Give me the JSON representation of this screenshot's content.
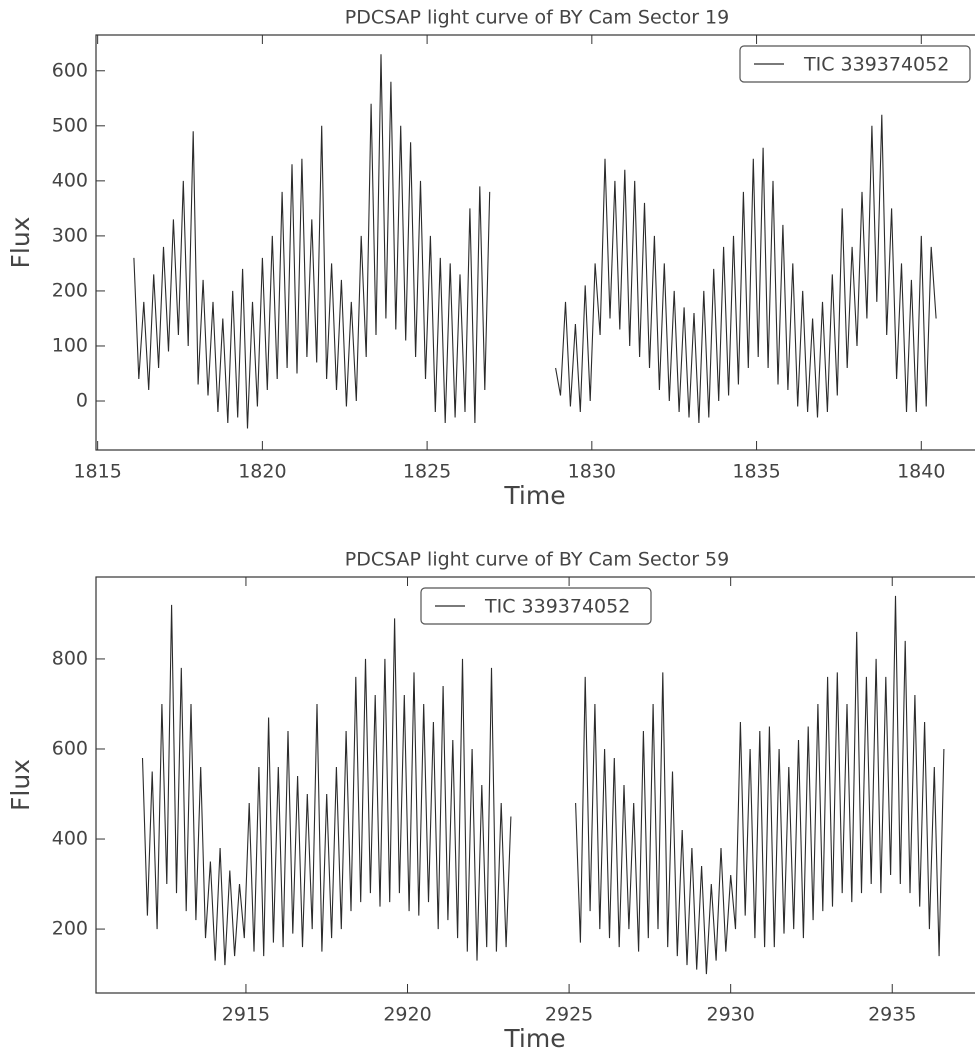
{
  "chart_data": [
    {
      "type": "line",
      "title": "PDCSAP light curve of BY Cam Sector 19",
      "xlabel": "Time",
      "ylabel": "Flux",
      "x": [
        1816.1,
        1816.25,
        1816.4,
        1816.55,
        1816.7,
        1816.85,
        1817.0,
        1817.15,
        1817.3,
        1817.45,
        1817.6,
        1817.75,
        1817.9,
        1818.05,
        1818.2,
        1818.35,
        1818.5,
        1818.65,
        1818.8,
        1818.95,
        1819.1,
        1819.25,
        1819.4,
        1819.55,
        1819.7,
        1819.85,
        1820.0,
        1820.15,
        1820.3,
        1820.45,
        1820.6,
        1820.75,
        1820.9,
        1821.05,
        1821.2,
        1821.35,
        1821.5,
        1821.65,
        1821.8,
        1821.95,
        1822.1,
        1822.25,
        1822.4,
        1822.55,
        1822.7,
        1822.85,
        1823.0,
        1823.15,
        1823.3,
        1823.45,
        1823.6,
        1823.75,
        1823.9,
        1824.05,
        1824.2,
        1824.35,
        1824.5,
        1824.65,
        1824.8,
        1824.95,
        1825.1,
        1825.25,
        1825.4,
        1825.55,
        1825.7,
        1825.85,
        1826.0,
        1826.15,
        1826.3,
        1826.45,
        1826.6,
        1826.75,
        1826.9,
        1827.9,
        1828.9,
        1829.05,
        1829.2,
        1829.35,
        1829.5,
        1829.65,
        1829.8,
        1829.95,
        1830.1,
        1830.25,
        1830.4,
        1830.55,
        1830.7,
        1830.85,
        1831.0,
        1831.15,
        1831.3,
        1831.45,
        1831.6,
        1831.75,
        1831.9,
        1832.05,
        1832.2,
        1832.35,
        1832.5,
        1832.65,
        1832.8,
        1832.95,
        1833.1,
        1833.25,
        1833.4,
        1833.55,
        1833.7,
        1833.85,
        1834.0,
        1834.15,
        1834.3,
        1834.45,
        1834.6,
        1834.75,
        1834.9,
        1835.05,
        1835.2,
        1835.35,
        1835.5,
        1835.65,
        1835.8,
        1835.95,
        1836.1,
        1836.25,
        1836.4,
        1836.55,
        1836.7,
        1836.85,
        1837.0,
        1837.15,
        1837.3,
        1837.45,
        1837.6,
        1837.75,
        1837.9,
        1838.05,
        1838.2,
        1838.35,
        1838.5,
        1838.65,
        1838.8,
        1838.95,
        1839.1,
        1839.25,
        1839.4,
        1839.55,
        1839.7,
        1839.85,
        1840.0,
        1840.15,
        1840.3,
        1840.45
      ],
      "series": [
        {
          "name": "TIC 339374052",
          "color": "#2b2b2b",
          "values": [
            260,
            40,
            180,
            20,
            230,
            60,
            280,
            90,
            330,
            120,
            400,
            100,
            490,
            30,
            220,
            10,
            180,
            -20,
            150,
            -40,
            200,
            -30,
            240,
            -50,
            180,
            -10,
            260,
            20,
            300,
            40,
            380,
            60,
            430,
            50,
            440,
            80,
            330,
            70,
            500,
            40,
            250,
            20,
            220,
            -10,
            180,
            0,
            300,
            80,
            540,
            120,
            630,
            150,
            580,
            130,
            500,
            110,
            470,
            80,
            400,
            40,
            300,
            -20,
            260,
            -40,
            250,
            -30,
            230,
            -20,
            350,
            -40,
            390,
            20,
            380,
            null,
            60,
            10,
            180,
            -10,
            140,
            -20,
            210,
            0,
            250,
            120,
            440,
            150,
            400,
            130,
            420,
            100,
            400,
            80,
            360,
            60,
            300,
            20,
            250,
            0,
            200,
            -20,
            170,
            -30,
            160,
            -40,
            200,
            -30,
            240,
            0,
            280,
            10,
            300,
            30,
            380,
            60,
            440,
            80,
            460,
            60,
            400,
            30,
            320,
            20,
            250,
            -10,
            200,
            -20,
            150,
            -30,
            180,
            -20,
            230,
            10,
            350,
            60,
            280,
            100,
            380,
            150,
            500,
            180,
            520,
            120,
            350,
            40,
            250,
            -20,
            220,
            -20,
            300,
            -10,
            280,
            150
          ]
        }
      ],
      "xlim": [
        1814.95,
        1841.6
      ],
      "ylim": [
        -89,
        665
      ],
      "xticks": [
        1815,
        1820,
        1825,
        1830,
        1835,
        1840
      ],
      "yticks": [
        0,
        100,
        200,
        300,
        400,
        500,
        600
      ],
      "legend": "upper right"
    },
    {
      "type": "line",
      "title": "PDCSAP light curve of BY Cam Sector 59",
      "xlabel": "Time",
      "ylabel": "Flux",
      "x": [
        2911.8,
        2911.95,
        2912.1,
        2912.25,
        2912.4,
        2912.55,
        2912.7,
        2912.85,
        2913.0,
        2913.15,
        2913.3,
        2913.45,
        2913.6,
        2913.75,
        2913.9,
        2914.05,
        2914.2,
        2914.35,
        2914.5,
        2914.65,
        2914.8,
        2914.95,
        2915.1,
        2915.25,
        2915.4,
        2915.55,
        2915.7,
        2915.85,
        2916.0,
        2916.15,
        2916.3,
        2916.45,
        2916.6,
        2916.75,
        2916.9,
        2917.05,
        2917.2,
        2917.35,
        2917.5,
        2917.65,
        2917.8,
        2917.95,
        2918.1,
        2918.25,
        2918.4,
        2918.55,
        2918.7,
        2918.85,
        2919.0,
        2919.15,
        2919.3,
        2919.45,
        2919.6,
        2919.75,
        2919.9,
        2920.05,
        2920.2,
        2920.35,
        2920.5,
        2920.65,
        2920.8,
        2920.95,
        2921.1,
        2921.25,
        2921.4,
        2921.55,
        2921.7,
        2921.85,
        2922.0,
        2922.15,
        2922.3,
        2922.45,
        2922.6,
        2922.75,
        2922.9,
        2923.05,
        2923.2,
        2924.2,
        2925.2,
        2925.35,
        2925.5,
        2925.65,
        2925.8,
        2925.95,
        2926.1,
        2926.25,
        2926.4,
        2926.55,
        2926.7,
        2926.85,
        2927.0,
        2927.15,
        2927.3,
        2927.45,
        2927.6,
        2927.75,
        2927.9,
        2928.05,
        2928.2,
        2928.35,
        2928.5,
        2928.65,
        2928.8,
        2928.95,
        2929.1,
        2929.25,
        2929.4,
        2929.55,
        2929.7,
        2929.85,
        2930.0,
        2930.15,
        2930.3,
        2930.45,
        2930.6,
        2930.75,
        2930.9,
        2931.05,
        2931.2,
        2931.35,
        2931.5,
        2931.65,
        2931.8,
        2931.95,
        2932.1,
        2932.25,
        2932.4,
        2932.55,
        2932.7,
        2932.85,
        2933.0,
        2933.15,
        2933.3,
        2933.45,
        2933.6,
        2933.75,
        2933.9,
        2934.05,
        2934.2,
        2934.35,
        2934.5,
        2934.65,
        2934.8,
        2934.95,
        2935.1,
        2935.25,
        2935.4,
        2935.55,
        2935.7,
        2935.85,
        2936.0,
        2936.15,
        2936.3,
        2936.45,
        2936.6
      ],
      "series": [
        {
          "name": "TIC 339374052",
          "color": "#2b2b2b",
          "values": [
            580,
            230,
            550,
            200,
            700,
            300,
            920,
            280,
            780,
            240,
            700,
            220,
            560,
            180,
            350,
            130,
            380,
            120,
            330,
            140,
            300,
            180,
            480,
            150,
            560,
            140,
            670,
            170,
            560,
            160,
            640,
            190,
            540,
            160,
            500,
            200,
            700,
            150,
            500,
            180,
            560,
            200,
            640,
            240,
            760,
            260,
            800,
            280,
            720,
            250,
            800,
            260,
            890,
            280,
            720,
            240,
            770,
            230,
            700,
            260,
            660,
            200,
            740,
            220,
            620,
            180,
            800,
            150,
            600,
            130,
            520,
            160,
            780,
            150,
            480,
            160,
            450,
            null,
            480,
            170,
            760,
            240,
            700,
            200,
            600,
            180,
            580,
            160,
            520,
            200,
            480,
            150,
            640,
            180,
            700,
            200,
            770,
            160,
            550,
            140,
            420,
            120,
            380,
            110,
            340,
            100,
            300,
            130,
            380,
            150,
            320,
            200,
            660,
            230,
            600,
            180,
            640,
            160,
            650,
            160,
            600,
            190,
            560,
            200,
            620,
            180,
            650,
            220,
            700,
            240,
            760,
            250,
            770,
            280,
            700,
            260,
            860,
            280,
            760,
            300,
            800,
            280,
            760,
            320,
            940,
            300,
            840,
            280,
            720,
            250,
            660,
            200,
            560,
            140,
            600
          ]
        }
      ],
      "xlim": [
        2910.36,
        2937.53
      ],
      "ylim": [
        58,
        982
      ],
      "xticks": [
        2915,
        2920,
        2925,
        2930,
        2935
      ],
      "yticks": [
        200,
        400,
        600,
        800
      ],
      "legend": "upper center"
    }
  ]
}
